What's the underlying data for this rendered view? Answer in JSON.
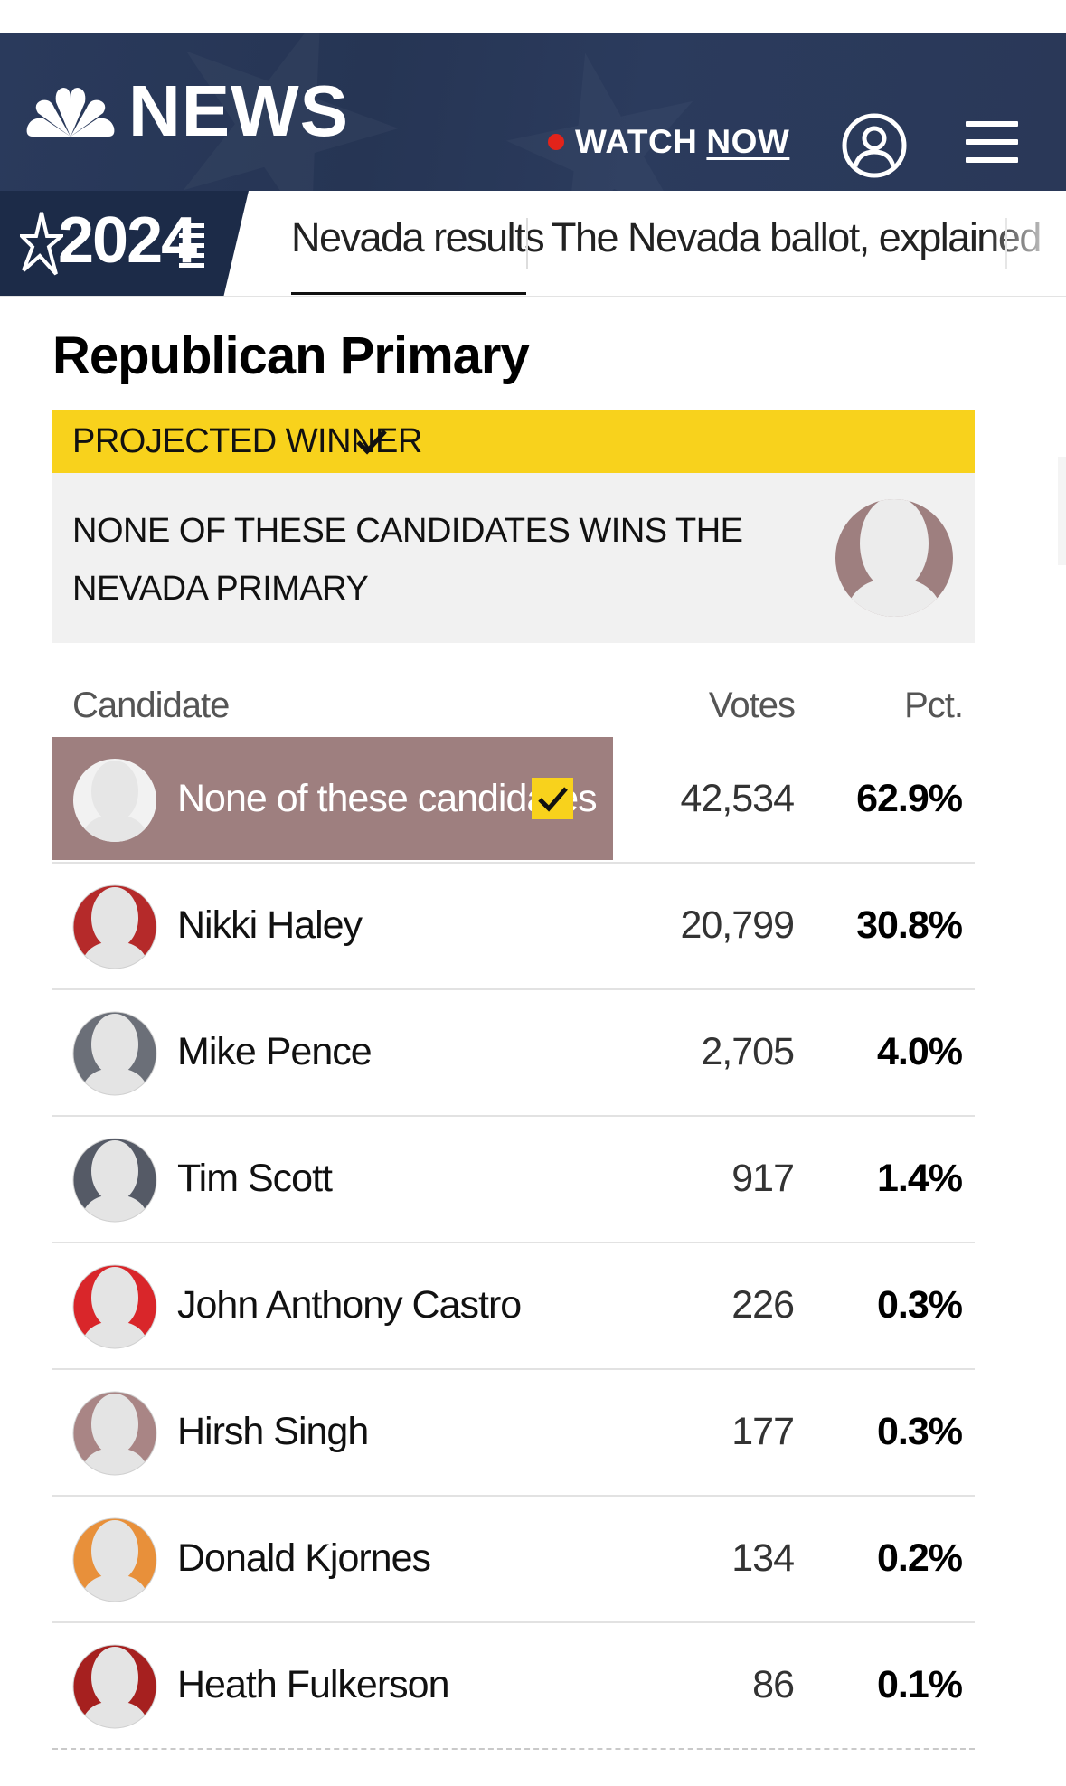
{
  "header": {
    "brand": "NEWS",
    "watch_label": "WATCH",
    "now_label": "NOW"
  },
  "subnav": {
    "badge_year": "2024",
    "tabs": [
      {
        "label": "Nevada results"
      },
      {
        "label": "The Nevada ballot, explained"
      }
    ]
  },
  "race": {
    "title": "Republican Primary",
    "projected_label": "PROJECTED WINNER",
    "winner_text": "NONE OF THESE CANDIDATES WINS THE NEVADA PRIMARY"
  },
  "table": {
    "headers": {
      "candidate": "Candidate",
      "votes": "Votes",
      "pct": "Pct."
    },
    "rows": [
      {
        "name": "None of these candidates",
        "votes": "42,534",
        "pct": "62.9%",
        "color": "#9e7f7f",
        "winner": true
      },
      {
        "name": "Nikki Haley",
        "votes": "20,799",
        "pct": "30.8%",
        "color": "#b52a2a"
      },
      {
        "name": "Mike Pence",
        "votes": "2,705",
        "pct": "4.0%",
        "color": "#6b6f78"
      },
      {
        "name": "Tim Scott",
        "votes": "917",
        "pct": "1.4%",
        "color": "#555a66"
      },
      {
        "name": "John Anthony Castro",
        "votes": "226",
        "pct": "0.3%",
        "color": "#d9262a"
      },
      {
        "name": "Hirsh Singh",
        "votes": "177",
        "pct": "0.3%",
        "color": "#a98585"
      },
      {
        "name": "Donald Kjornes",
        "votes": "134",
        "pct": "0.2%",
        "color": "#e8903a"
      },
      {
        "name": "Heath Fulkerson",
        "votes": "86",
        "pct": "0.1%",
        "color": "#a6201f"
      }
    ]
  },
  "colors": {
    "header_bg": "#2a3a5c",
    "badge_bg": "#1c2b48",
    "winner_yellow": "#f8d21c",
    "winner_row": "#9e7f7f"
  }
}
